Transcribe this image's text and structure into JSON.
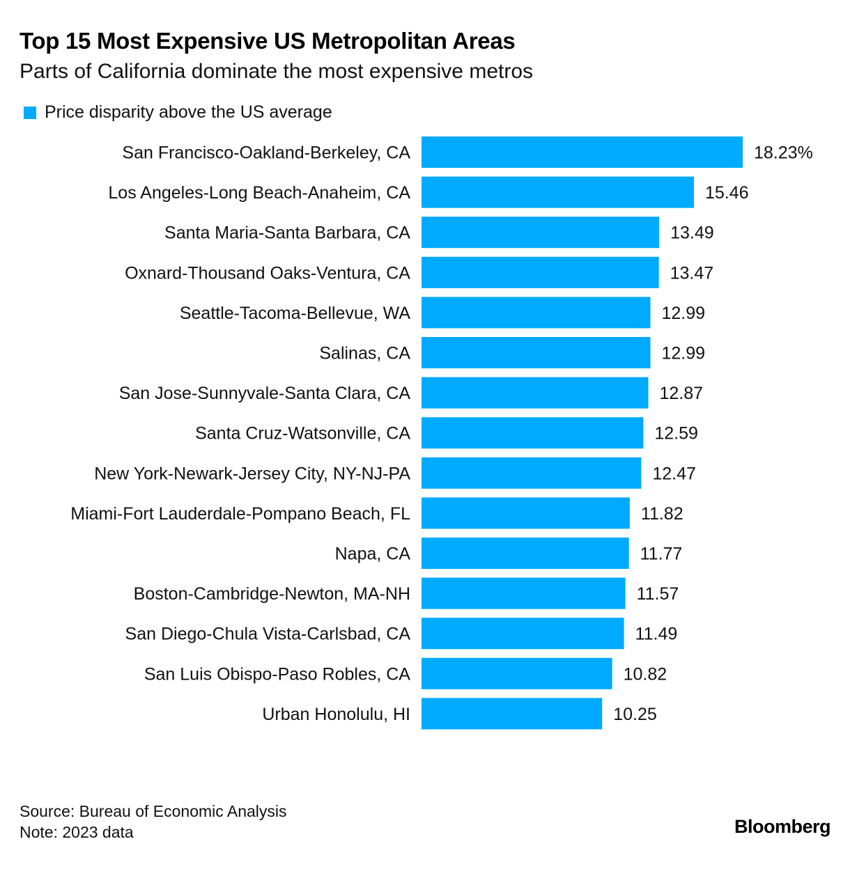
{
  "title": "Top 15 Most Expensive US Metropolitan Areas",
  "subtitle": "Parts of California dominate the most expensive metros",
  "legend": {
    "label": "Price disparity above the US average",
    "color": "#00aaff"
  },
  "chart_data": {
    "type": "bar",
    "orientation": "horizontal",
    "title": "Top 15 Most Expensive US Metropolitan Areas",
    "xlabel": "",
    "ylabel": "",
    "xlim": [
      0,
      18.23
    ],
    "grid": false,
    "bar_color": "#00aaff",
    "value_suffix_first": "%",
    "categories": [
      "San Francisco-Oakland-Berkeley, CA",
      "Los Angeles-Long Beach-Anaheim, CA",
      "Santa Maria-Santa Barbara, CA",
      "Oxnard-Thousand Oaks-Ventura, CA",
      "Seattle-Tacoma-Bellevue, WA",
      "Salinas, CA",
      "San Jose-Sunnyvale-Santa Clara, CA",
      "Santa Cruz-Watsonville, CA",
      "New York-Newark-Jersey City, NY-NJ-PA",
      "Miami-Fort Lauderdale-Pompano Beach, FL",
      "Napa, CA",
      "Boston-Cambridge-Newton, MA-NH",
      "San Diego-Chula Vista-Carlsbad, CA",
      "San Luis Obispo-Paso Robles, CA",
      "Urban Honolulu, HI"
    ],
    "values": [
      18.23,
      15.46,
      13.49,
      13.47,
      12.99,
      12.99,
      12.87,
      12.59,
      12.47,
      11.82,
      11.77,
      11.57,
      11.49,
      10.82,
      10.25
    ],
    "value_labels": [
      "18.23%",
      "15.46",
      "13.49",
      "13.47",
      "12.99",
      "12.99",
      "12.87",
      "12.59",
      "12.47",
      "11.82",
      "11.77",
      "11.57",
      "11.49",
      "10.82",
      "10.25"
    ]
  },
  "footer": {
    "source": "Source: Bureau of Economic Analysis",
    "note": "Note: 2023 data",
    "logo": "Bloomberg"
  }
}
